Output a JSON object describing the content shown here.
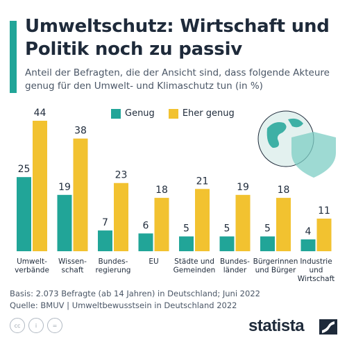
{
  "header": {
    "title": "Umweltschutz: Wirtschaft und Politik noch zu passiv",
    "subtitle": "Anteil der Befragten, die der Ansicht sind, dass folgende Akteure genug für den Umwelt- und Klimaschutz tun (in %)"
  },
  "legend": {
    "genug": "Genug",
    "eher_genug": "Eher genug"
  },
  "colors": {
    "genug": "#21a598",
    "eher_genug": "#f2c230",
    "title": "#1e2a3a",
    "accent": "#21a598"
  },
  "chart_data": {
    "type": "bar",
    "title": "Umweltschutz: Wirtschaft und Politik noch zu passiv",
    "subtitle": "Anteil der Befragten, die der Ansicht sind, dass folgende Akteure genug für den Umwelt- und Klimaschutz tun (in %)",
    "categories": [
      "Umwelt-\nverbände",
      "Wissen-\nschaft",
      "Bundes-\nregierung",
      "EU",
      "Städte und\nGemeinden",
      "Bundes-\nländer",
      "Bürgerinnen\nund Bürger",
      "Industrie\nund\nWirtschaft"
    ],
    "series": [
      {
        "name": "Genug",
        "values": [
          25,
          19,
          7,
          6,
          5,
          5,
          5,
          4
        ]
      },
      {
        "name": "Eher genug",
        "values": [
          44,
          38,
          23,
          18,
          21,
          19,
          18,
          11
        ]
      }
    ],
    "ylim": [
      0,
      44
    ],
    "xlabel": "",
    "ylabel": "",
    "grid": false,
    "legend_position": "top"
  },
  "footer": {
    "basis": "Basis: 2.073 Befragte (ab 14 Jahren) in Deutschland; Juni 2022",
    "source": "Quelle: BMUV | Umweltbewusstsein in Deutschland 2022",
    "brand": "statista"
  }
}
